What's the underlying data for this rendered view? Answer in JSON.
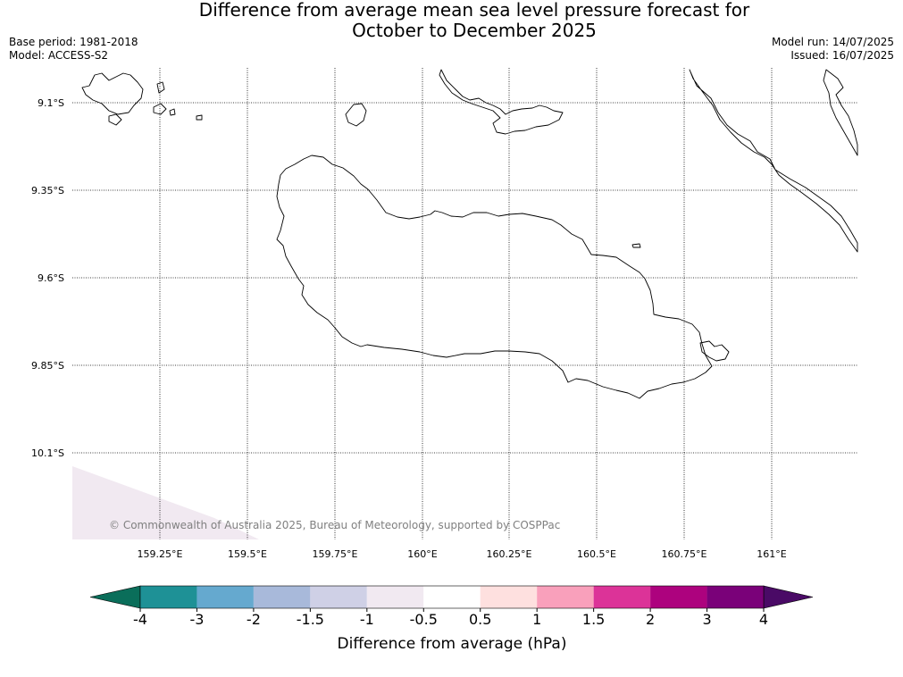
{
  "title": {
    "line1": "Difference from average mean sea level pressure forecast for",
    "line2": "October to December 2025"
  },
  "meta_left": {
    "base_period": "Base period: 1981-2018",
    "model": "Model: ACCESS-S2"
  },
  "meta_right": {
    "model_run": "Model run: 14/07/2025",
    "issued": "Issued: 16/07/2025"
  },
  "map": {
    "lat_labels": [
      "9.1°S",
      "9.35°S",
      "9.6°S",
      "9.85°S",
      "10.1°S"
    ],
    "lon_labels": [
      "159.25°E",
      "159.5°E",
      "159.75°E",
      "160°E",
      "160.25°E",
      "160.5°E",
      "160.75°E",
      "161°E"
    ],
    "copyright": "© Commonwealth of Australia 2025, Bureau of Meteorology, supported by COSPPac",
    "shaded_value_range": "-1 to -0.5"
  },
  "colorbar": {
    "title": "Difference from average (hPa)",
    "ticks": [
      "-4",
      "-3",
      "-2",
      "-1.5",
      "-1",
      "-0.5",
      "0.5",
      "1",
      "1.5",
      "2",
      "3",
      "4"
    ],
    "under_color": "#0a6e5a",
    "over_color": "#4a0a66",
    "colors": [
      "#1e9196",
      "#65a9cf",
      "#a8b9da",
      "#cfd0e6",
      "#f1e9f1",
      "#ffffff",
      "#fee0df",
      "#f9a0bb",
      "#dc3398",
      "#ad027e",
      "#7a0179"
    ]
  }
}
